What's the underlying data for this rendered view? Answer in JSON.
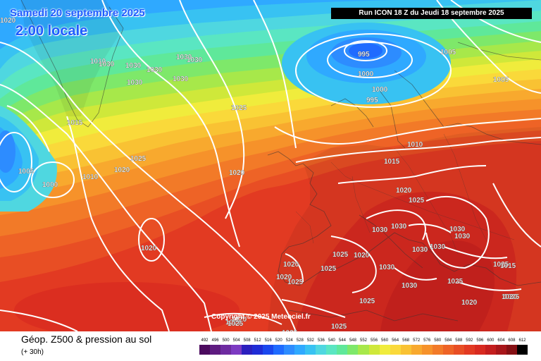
{
  "title_date": "Samedi 20 septembre 2025",
  "title_time": "2:00 locale",
  "run_info": "Run ICON 18 Z du Jeudi 18 septembre 2025",
  "copyright": "Copyright © 2025 Meteociel.fr",
  "field_label": "Géop. Z500 & pression au sol",
  "lead_time": "(+ 30h)",
  "legend": {
    "values": [
      "492",
      "496",
      "500",
      "504",
      "508",
      "512",
      "516",
      "520",
      "524",
      "528",
      "532",
      "536",
      "540",
      "544",
      "548",
      "552",
      "556",
      "560",
      "564",
      "568",
      "572",
      "576",
      "580",
      "584",
      "588",
      "592",
      "596",
      "600",
      "604",
      "608",
      "612"
    ],
    "colors": [
      "#4b0a5e",
      "#5e1b80",
      "#6d2aa0",
      "#7c3ac2",
      "#2b1fbe",
      "#1f2cd6",
      "#1a47ee",
      "#1f6bff",
      "#2d8cff",
      "#2fa9ff",
      "#38c2f2",
      "#4fd7e0",
      "#5ae6c2",
      "#5fe89a",
      "#7ee86a",
      "#a7e84a",
      "#cfe83a",
      "#f0ec3c",
      "#fad93a",
      "#f9c233",
      "#f8a92e",
      "#f6922a",
      "#f27a28",
      "#ee6326",
      "#e84e24",
      "#e23a22",
      "#d82a20",
      "#c41e1e",
      "#a8161a",
      "#851014",
      "#000000"
    ]
  },
  "isobar_labels": [
    "1020",
    "1010",
    "1030",
    "1030",
    "1030",
    "1030",
    "1030",
    "1030",
    "1030",
    "995",
    "1005",
    "1000",
    "1000",
    "995",
    "1005",
    "1025",
    "1015",
    "1025",
    "1010",
    "1020",
    "1005",
    "1000",
    "1010",
    "1015",
    "1020",
    "1025",
    "1030",
    "1030",
    "1030",
    "1030",
    "1030",
    "1020",
    "1025",
    "1030",
    "1025",
    "1030",
    "1030",
    "1025",
    "1025",
    "1020",
    "1020",
    "1020",
    "1025",
    "1025",
    "1025",
    "1025",
    "1025",
    "1020",
    "1025",
    "1015",
    "1020",
    "1020",
    "1020",
    "1025",
    "1010"
  ]
}
